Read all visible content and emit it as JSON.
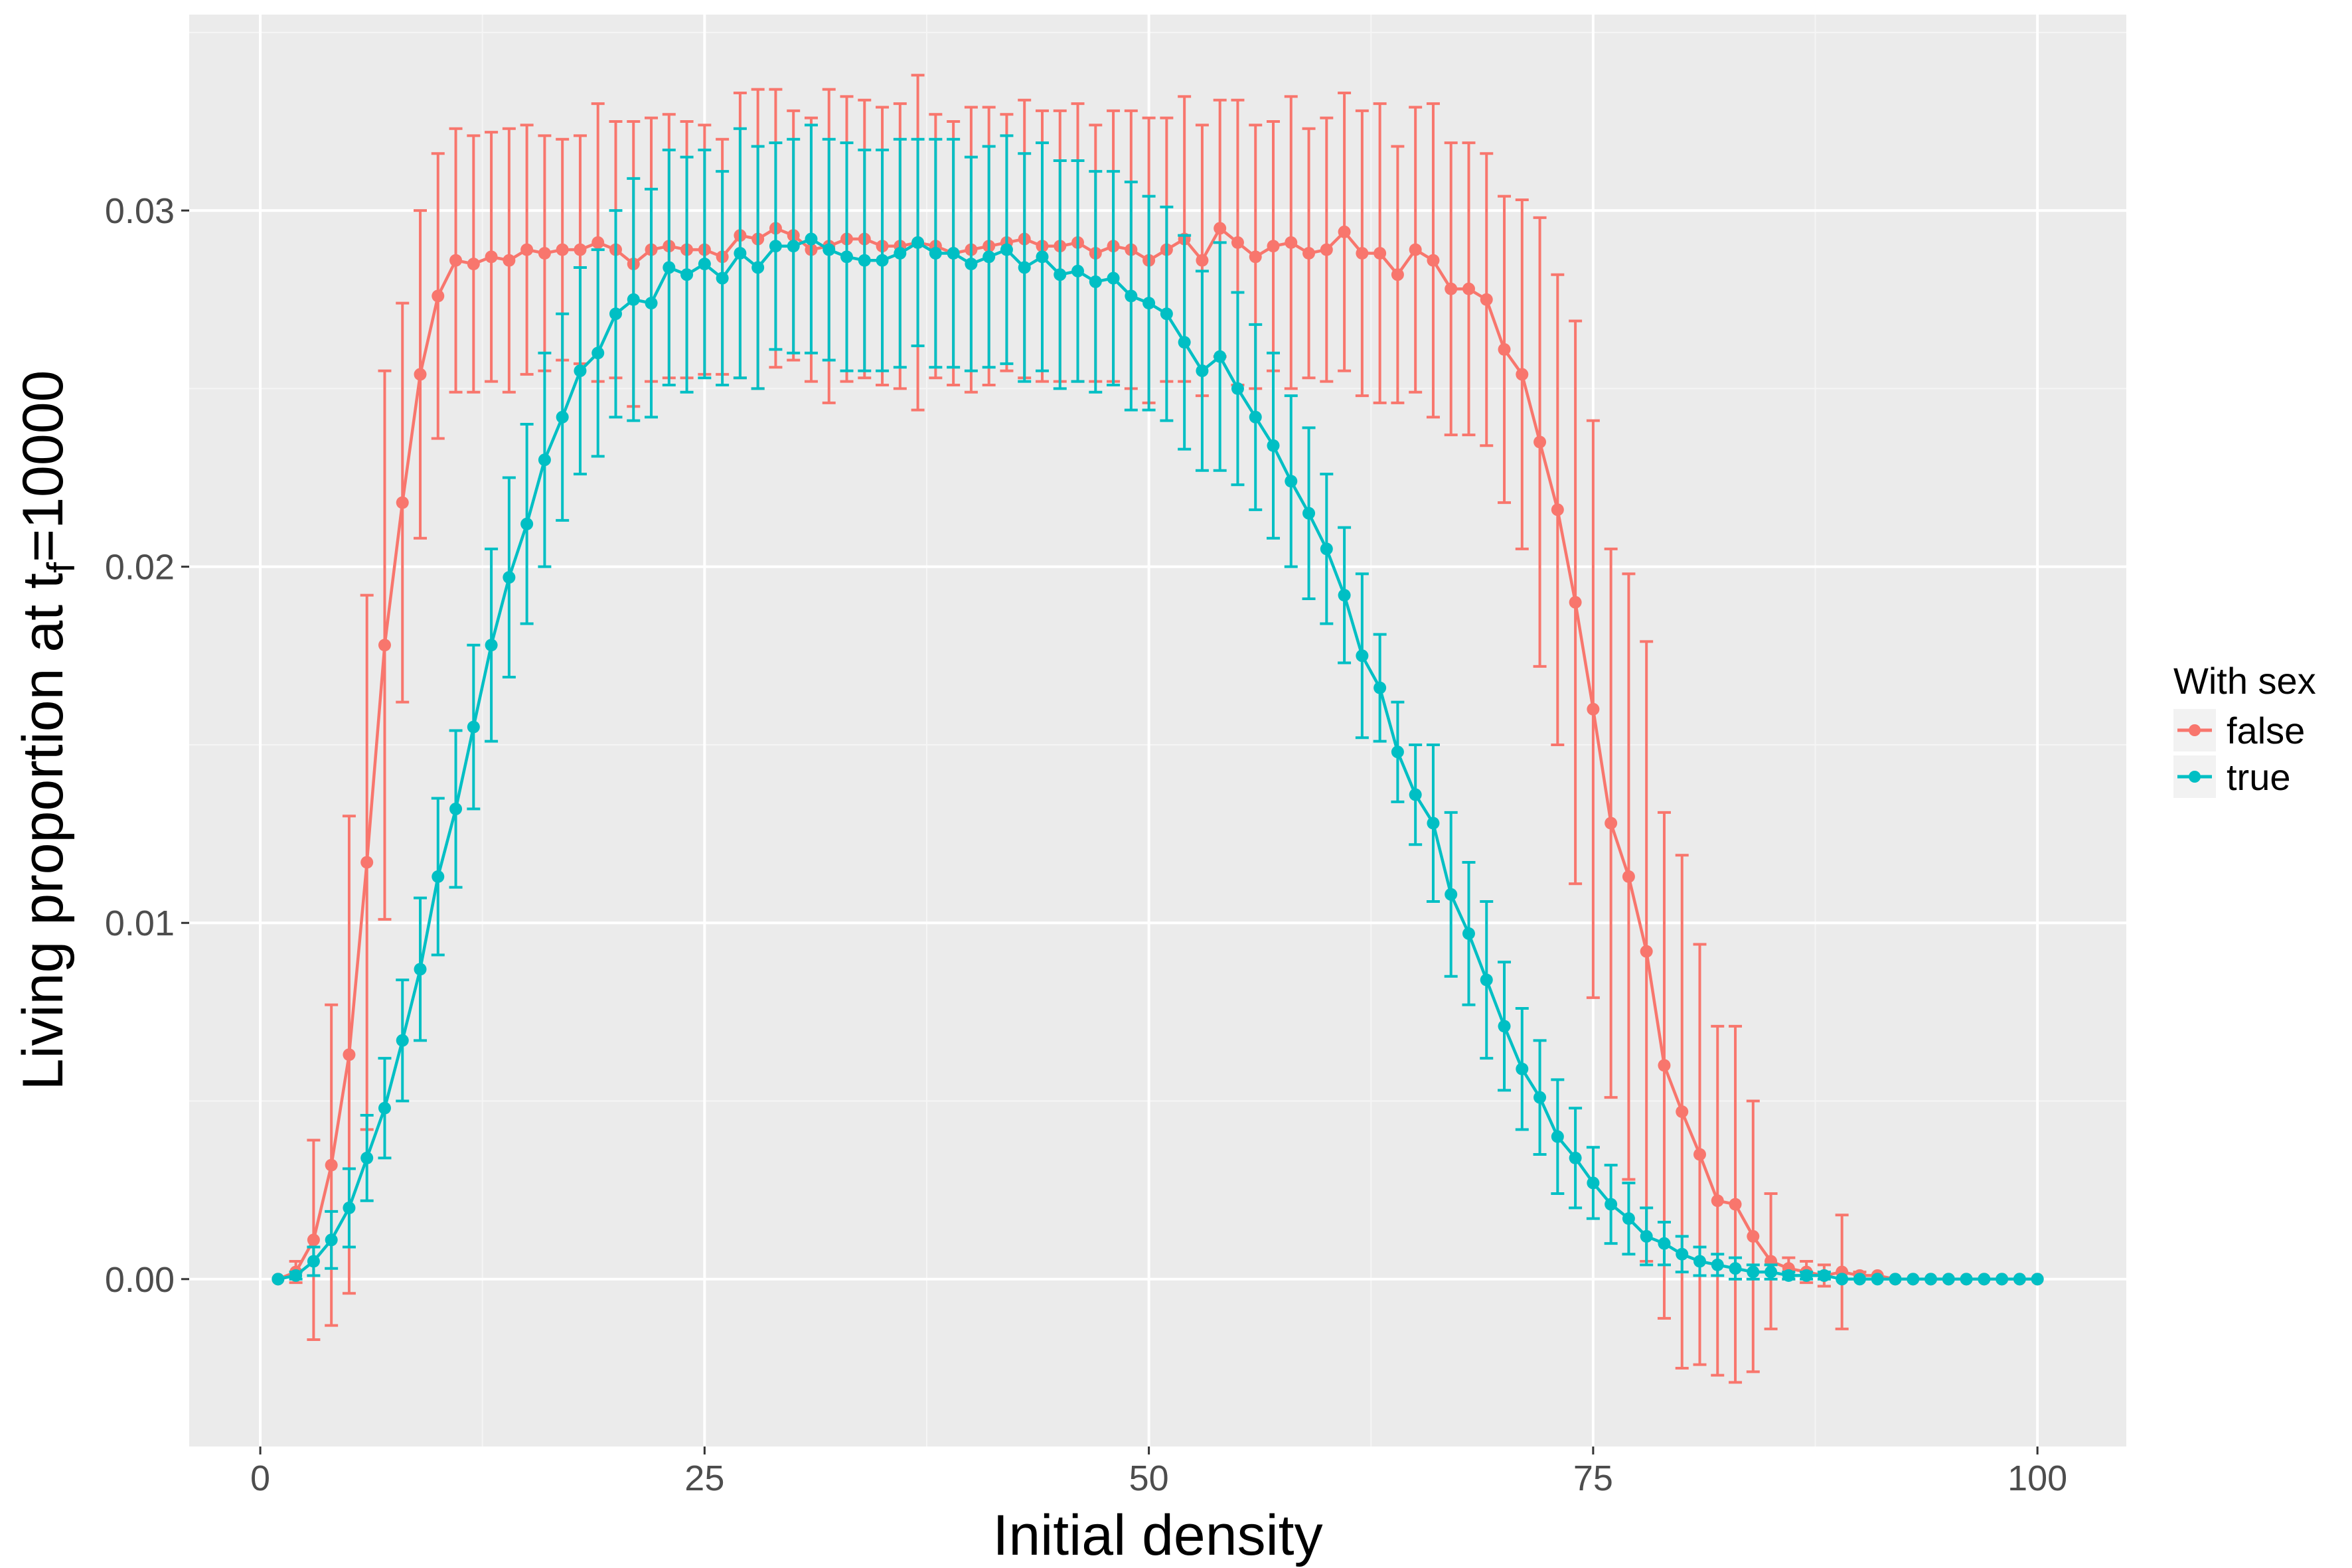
{
  "chart_data": {
    "type": "line",
    "xlabel": "Initial density",
    "ylabel_main": "Living proportion at t",
    "ylabel_sub": "f",
    "ylabel_tail": "=10000",
    "xlim": [
      -4,
      105
    ],
    "ylim": [
      -0.0047,
      0.0355
    ],
    "x_ticks": [
      0,
      25,
      50,
      75,
      100
    ],
    "x_tick_labels": [
      "0",
      "25",
      "50",
      "75",
      "100"
    ],
    "y_ticks": [
      0.0,
      0.01,
      0.02,
      0.03
    ],
    "y_tick_labels": [
      "0.00",
      "0.01",
      "0.02",
      "0.03"
    ],
    "grid": true,
    "legend": {
      "title": "With sex",
      "position": "right"
    },
    "x": [
      1,
      2,
      3,
      4,
      5,
      6,
      7,
      8,
      9,
      10,
      11,
      12,
      13,
      14,
      15,
      16,
      17,
      18,
      19,
      20,
      21,
      22,
      23,
      24,
      25,
      26,
      27,
      28,
      29,
      30,
      31,
      32,
      33,
      34,
      35,
      36,
      37,
      38,
      39,
      40,
      41,
      42,
      43,
      44,
      45,
      46,
      47,
      48,
      49,
      50,
      51,
      52,
      53,
      54,
      55,
      56,
      57,
      58,
      59,
      60,
      61,
      62,
      63,
      64,
      65,
      66,
      67,
      68,
      69,
      70,
      71,
      72,
      73,
      74,
      75,
      76,
      77,
      78,
      79,
      80,
      81,
      82,
      83,
      84,
      85,
      86,
      87,
      88,
      89,
      90,
      91,
      92,
      93,
      94,
      95,
      96,
      97,
      98,
      99,
      100
    ],
    "series": [
      {
        "name": "false",
        "color": "#F8766D",
        "y": [
          0.0,
          0.0002,
          0.0011,
          0.0032,
          0.0063,
          0.0117,
          0.0178,
          0.0218,
          0.0254,
          0.0276,
          0.0286,
          0.0285,
          0.0287,
          0.0286,
          0.0289,
          0.0288,
          0.0289,
          0.0289,
          0.0291,
          0.0289,
          0.0285,
          0.0289,
          0.029,
          0.0289,
          0.0289,
          0.0287,
          0.0293,
          0.0292,
          0.0295,
          0.0293,
          0.0289,
          0.029,
          0.0292,
          0.0292,
          0.029,
          0.029,
          0.0291,
          0.029,
          0.0288,
          0.0289,
          0.029,
          0.0291,
          0.0292,
          0.029,
          0.029,
          0.0291,
          0.0288,
          0.029,
          0.0289,
          0.0286,
          0.0289,
          0.0292,
          0.0286,
          0.0295,
          0.0291,
          0.0287,
          0.029,
          0.0291,
          0.0288,
          0.0289,
          0.0294,
          0.0288,
          0.0288,
          0.0282,
          0.0289,
          0.0286,
          0.0278,
          0.0278,
          0.0275,
          0.0261,
          0.0254,
          0.0235,
          0.0216,
          0.019,
          0.016,
          0.0128,
          0.0113,
          0.0092,
          0.006,
          0.0047,
          0.0035,
          0.0022,
          0.0021,
          0.0012,
          0.0005,
          0.0003,
          0.0002,
          0.0001,
          0.0002,
          0.0001,
          0.0001,
          0.0,
          0.0,
          0.0,
          0.0,
          0.0,
          0.0,
          0.0,
          0.0,
          0.0
        ],
        "err": [
          0.0,
          0.0003,
          0.0028,
          0.0045,
          0.0067,
          0.0075,
          0.0077,
          0.0056,
          0.0046,
          0.004,
          0.0037,
          0.0036,
          0.0035,
          0.0037,
          0.0035,
          0.0033,
          0.0031,
          0.0032,
          0.0039,
          0.0036,
          0.004,
          0.0037,
          0.0037,
          0.0036,
          0.0035,
          0.0033,
          0.004,
          0.0042,
          0.0039,
          0.0035,
          0.0037,
          0.0044,
          0.004,
          0.0039,
          0.0039,
          0.004,
          0.0047,
          0.0037,
          0.0037,
          0.004,
          0.0039,
          0.0036,
          0.0039,
          0.0038,
          0.0038,
          0.0039,
          0.0036,
          0.0038,
          0.0039,
          0.004,
          0.0037,
          0.004,
          0.0038,
          0.0036,
          0.004,
          0.0037,
          0.0035,
          0.0041,
          0.0035,
          0.0037,
          0.0039,
          0.004,
          0.0042,
          0.0036,
          0.004,
          0.0044,
          0.0041,
          0.0041,
          0.0041,
          0.0043,
          0.0049,
          0.0063,
          0.0066,
          0.0079,
          0.0081,
          0.0077,
          0.0085,
          0.0087,
          0.0071,
          0.0072,
          0.0059,
          0.0049,
          0.005,
          0.0038,
          0.0019,
          0.0003,
          0.0003,
          0.0003,
          0.0016,
          0.0001,
          0.0,
          0.0,
          0.0,
          0.0,
          0.0,
          0.0,
          0.0,
          0.0,
          0.0,
          0.0
        ]
      },
      {
        "name": "true",
        "color": "#00BFC4",
        "y": [
          0.0,
          0.0001,
          0.0005,
          0.0011,
          0.002,
          0.0034,
          0.0048,
          0.0067,
          0.0087,
          0.0113,
          0.0132,
          0.0155,
          0.0178,
          0.0197,
          0.0212,
          0.023,
          0.0242,
          0.0255,
          0.026,
          0.0271,
          0.0275,
          0.0274,
          0.0284,
          0.0282,
          0.0285,
          0.0281,
          0.0288,
          0.0284,
          0.029,
          0.029,
          0.0292,
          0.0289,
          0.0287,
          0.0286,
          0.0286,
          0.0288,
          0.0291,
          0.0288,
          0.0288,
          0.0285,
          0.0287,
          0.0289,
          0.0284,
          0.0287,
          0.0282,
          0.0283,
          0.028,
          0.0281,
          0.0276,
          0.0274,
          0.0271,
          0.0263,
          0.0255,
          0.0259,
          0.025,
          0.0242,
          0.0234,
          0.0224,
          0.0215,
          0.0205,
          0.0192,
          0.0175,
          0.0166,
          0.0148,
          0.0136,
          0.0128,
          0.0108,
          0.0097,
          0.0084,
          0.0071,
          0.0059,
          0.0051,
          0.004,
          0.0034,
          0.0027,
          0.0021,
          0.0017,
          0.0012,
          0.001,
          0.0007,
          0.0005,
          0.0004,
          0.0003,
          0.0002,
          0.0002,
          0.0001,
          0.0001,
          0.0001,
          0.0,
          0.0,
          0.0,
          0.0,
          0.0,
          0.0,
          0.0,
          0.0,
          0.0,
          0.0,
          0.0,
          0.0
        ],
        "err": [
          0.0,
          0.0001,
          0.0004,
          0.0008,
          0.0011,
          0.0012,
          0.0014,
          0.0017,
          0.002,
          0.0022,
          0.0022,
          0.0023,
          0.0027,
          0.0028,
          0.0028,
          0.003,
          0.0029,
          0.0029,
          0.0029,
          0.0029,
          0.0034,
          0.0032,
          0.0033,
          0.0033,
          0.0032,
          0.003,
          0.0035,
          0.0034,
          0.0029,
          0.003,
          0.0032,
          0.0031,
          0.0032,
          0.0031,
          0.0031,
          0.0032,
          0.0029,
          0.0032,
          0.0032,
          0.003,
          0.0031,
          0.0032,
          0.0032,
          0.0032,
          0.0032,
          0.0031,
          0.0031,
          0.003,
          0.0032,
          0.003,
          0.003,
          0.003,
          0.0028,
          0.0032,
          0.0027,
          0.0026,
          0.0026,
          0.0024,
          0.0024,
          0.0021,
          0.0019,
          0.0023,
          0.0015,
          0.0014,
          0.0014,
          0.0022,
          0.0023,
          0.002,
          0.0022,
          0.0018,
          0.0017,
          0.0016,
          0.0016,
          0.0014,
          0.001,
          0.0011,
          0.001,
          0.0008,
          0.0006,
          0.0005,
          0.0004,
          0.0003,
          0.0003,
          0.0002,
          0.0002,
          0.0001,
          0.0001,
          0.0001,
          0.0,
          0.0,
          0.0,
          0.0,
          0.0,
          0.0,
          0.0,
          0.0,
          0.0,
          0.0,
          0.0,
          0.0
        ]
      }
    ]
  }
}
